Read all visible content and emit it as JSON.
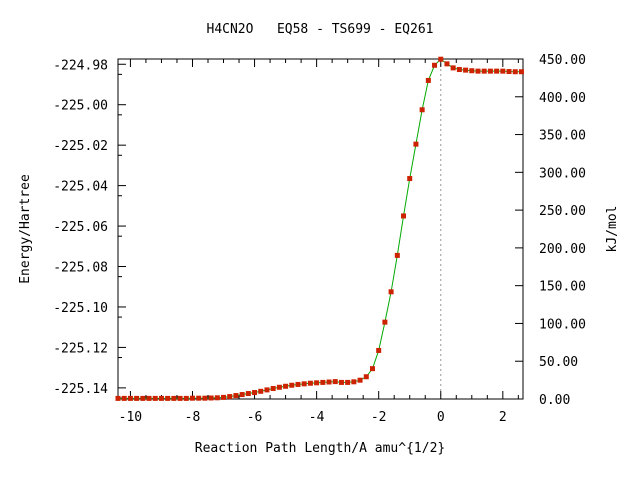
{
  "chart_data": {
    "type": "line",
    "title": "H4CN2O   EQ58 - TS699 - EQ261",
    "xlabel": "Reaction Path Length/A amu^{1/2}",
    "ylabel": "Energy/Hartree",
    "y2label": "kJ/mol",
    "xlim": [
      -10.4,
      2.65
    ],
    "ylim": [
      -225.1455,
      -224.9774
    ],
    "y2lim": [
      0.0,
      450.0
    ],
    "x_ticks": [
      "-10",
      "-8",
      "-6",
      "-4",
      "-2",
      "0",
      "2"
    ],
    "x_tick_values": [
      -10,
      -8,
      -6,
      -4,
      -2,
      0,
      2
    ],
    "y_ticks": [
      "-224.98",
      "-225.00",
      "-225.02",
      "-225.04",
      "-225.06",
      "-225.08",
      "-225.10",
      "-225.12",
      "-225.14"
    ],
    "y_tick_values": [
      -224.98,
      -225.0,
      -225.02,
      -225.04,
      -225.06,
      -225.08,
      -225.1,
      -225.12,
      -225.14
    ],
    "y2_ticks": [
      "450.00",
      "400.00",
      "350.00",
      "300.00",
      "250.00",
      "200.00",
      "150.00",
      "100.00",
      "50.00",
      "0.00"
    ],
    "y2_tick_values": [
      450,
      400,
      350,
      300,
      250,
      200,
      150,
      100,
      50,
      0
    ],
    "ts_marker_x": 0,
    "grid": false,
    "colors": {
      "line": "#00aa00",
      "points": "#cc2200",
      "ts_marker": "#999999"
    },
    "series": [
      {
        "x": [
          -10.4,
          -10.2,
          -10.0,
          -9.8,
          -9.6,
          -9.4,
          -9.2,
          -9.0,
          -8.8,
          -8.6,
          -8.4,
          -8.2,
          -8.0,
          -7.8,
          -7.6,
          -7.4,
          -7.2,
          -7.0,
          -6.8,
          -6.6,
          -6.4,
          -6.2,
          -6.0,
          -5.8,
          -5.6,
          -5.4,
          -5.2,
          -5.0,
          -4.8,
          -4.6,
          -4.4,
          -4.2,
          -4.0,
          -3.8,
          -3.6,
          -3.4,
          -3.2,
          -3.0,
          -2.8,
          -2.6,
          -2.4,
          -2.2,
          -2.0,
          -1.8,
          -1.6,
          -1.4,
          -1.2,
          -1.0,
          -0.8,
          -0.6,
          -0.4,
          -0.2,
          0.0,
          0.2,
          0.4,
          0.6,
          0.8,
          1.0,
          1.2,
          1.4,
          1.6,
          1.8,
          2.0,
          2.2,
          2.4,
          2.6
        ],
        "y": [
          -225.1452,
          -225.1452,
          -225.1452,
          -225.1452,
          -225.1452,
          -225.1452,
          -225.1452,
          -225.1452,
          -225.1452,
          -225.1452,
          -225.1452,
          -225.1452,
          -225.1451,
          -225.1451,
          -225.1451,
          -225.145,
          -225.1449,
          -225.1447,
          -225.1443,
          -225.1438,
          -225.1433,
          -225.1428,
          -225.1423,
          -225.1417,
          -225.141,
          -225.1403,
          -225.1397,
          -225.1392,
          -225.1387,
          -225.1383,
          -225.138,
          -225.1377,
          -225.1375,
          -225.1373,
          -225.1371,
          -225.1369,
          -225.1373,
          -225.1373,
          -225.137,
          -225.1362,
          -225.1345,
          -225.1305,
          -225.1215,
          -225.1075,
          -225.0925,
          -225.0745,
          -225.055,
          -225.0365,
          -225.0195,
          -225.0025,
          -224.988,
          -224.9805,
          -224.9775,
          -224.9798,
          -224.9818,
          -224.9826,
          -224.9829,
          -224.9832,
          -224.9834,
          -224.9834,
          -224.9834,
          -224.9834,
          -224.9834,
          -224.9836,
          -224.9837,
          -224.9837
        ]
      }
    ]
  }
}
